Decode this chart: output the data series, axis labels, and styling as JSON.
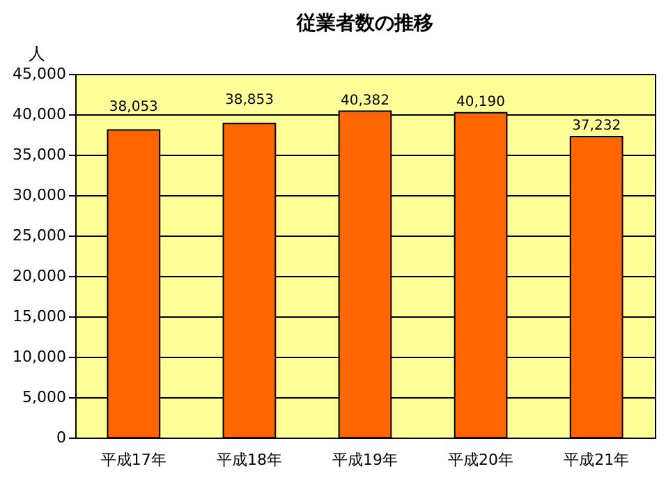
{
  "chart_data": {
    "type": "bar",
    "title": "従業者数の推移",
    "ylabel": "人",
    "categories": [
      "平成17年",
      "平成18年",
      "平成19年",
      "平成20年",
      "平成21年"
    ],
    "values": [
      38053,
      38853,
      40382,
      40190,
      37232
    ],
    "value_labels": [
      "38,053",
      "38,853",
      "40,382",
      "40,190",
      "37,232"
    ],
    "color": "#ff6600",
    "ylim": [
      0,
      45000
    ],
    "yticks": [
      {
        "value": 0,
        "label": "0"
      },
      {
        "value": 5000,
        "label": "5,000"
      },
      {
        "value": 10000,
        "label": "10,000"
      },
      {
        "value": 15000,
        "label": "15,000"
      },
      {
        "value": 20000,
        "label": "20,000"
      },
      {
        "value": 25000,
        "label": "25,000"
      },
      {
        "value": 30000,
        "label": "30,000"
      },
      {
        "value": 35000,
        "label": "35,000"
      },
      {
        "value": 40000,
        "label": "40,000"
      },
      {
        "value": 45000,
        "label": "45,000"
      }
    ],
    "grid": "y"
  }
}
